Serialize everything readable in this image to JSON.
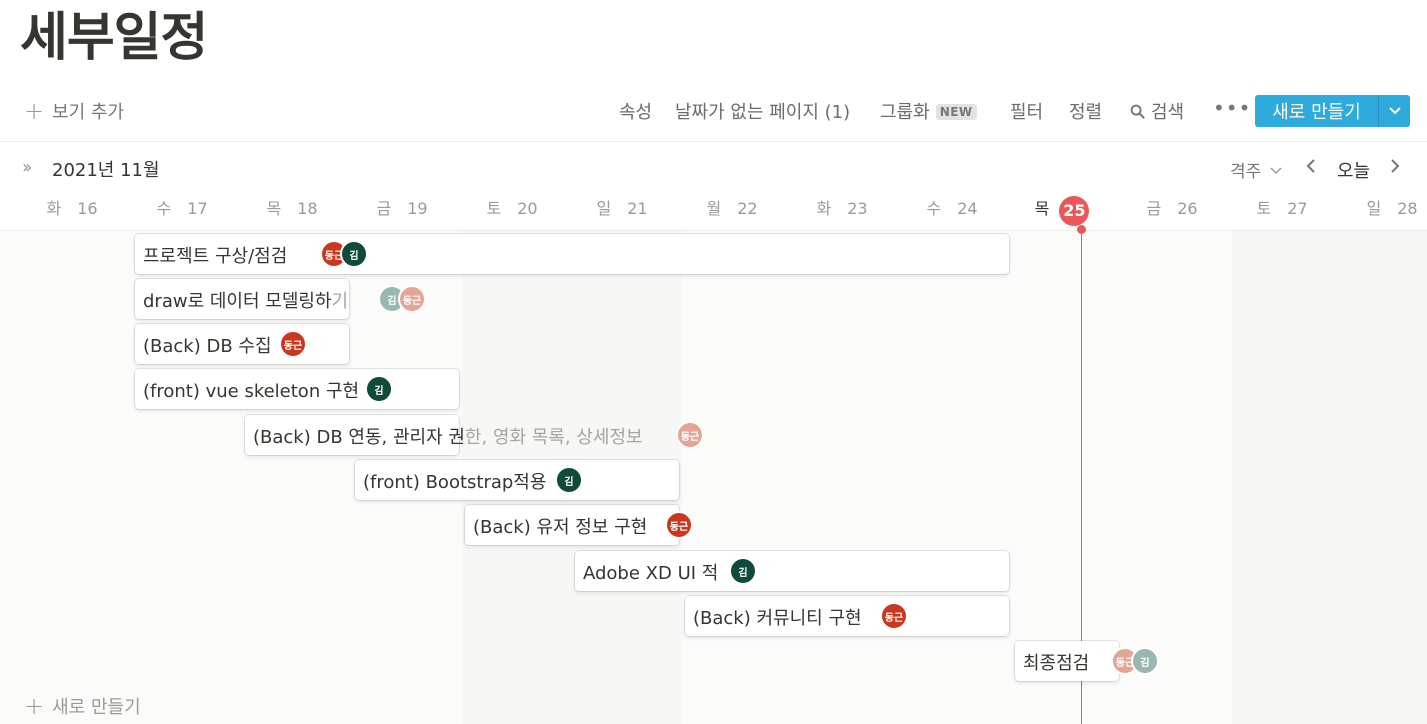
{
  "page": {
    "title": "세부일정"
  },
  "toolbar": {
    "add_view": "보기 추가",
    "properties": "속성",
    "no_date_pages": "날짜가 없는 페이지 (1)",
    "group": "그룹화",
    "group_badge": "NEW",
    "filter": "필터",
    "sort": "정렬",
    "search": "검색",
    "more": "•••",
    "new_button": "새로 만들기"
  },
  "timeline": {
    "month": "2021년 11월",
    "zoom": "격주",
    "today": "오늘",
    "accent": "#eb5757",
    "days": [
      {
        "weekday": "화",
        "date": "16"
      },
      {
        "weekday": "수",
        "date": "17"
      },
      {
        "weekday": "목",
        "date": "18"
      },
      {
        "weekday": "금",
        "date": "19"
      },
      {
        "weekday": "토",
        "date": "20"
      },
      {
        "weekday": "일",
        "date": "21"
      },
      {
        "weekday": "월",
        "date": "22"
      },
      {
        "weekday": "화",
        "date": "23"
      },
      {
        "weekday": "수",
        "date": "24"
      },
      {
        "weekday": "목",
        "date": "25"
      },
      {
        "weekday": "금",
        "date": "26"
      },
      {
        "weekday": "토",
        "date": "27"
      },
      {
        "weekday": "일",
        "date": "28"
      }
    ],
    "tasks": [
      {
        "name": "프로젝트 구상/점검",
        "assignees": [
          "동근",
          "김"
        ]
      },
      {
        "name": "draw로 데이터 모델링하",
        "name_overflow": "기",
        "assignees": [
          "김",
          "동근"
        ]
      },
      {
        "name": "(Back) DB 수집",
        "assignees": [
          "동근"
        ]
      },
      {
        "name": "(front) vue skeleton 구현",
        "assignees": [
          "김"
        ]
      },
      {
        "name": "(Back) DB 연동, 관리자 권",
        "name_overflow": "한, 영화 목록, 상세정보",
        "assignees": [
          "동근"
        ]
      },
      {
        "name": "(front) Bootstrap적용",
        "assignees": [
          "김"
        ]
      },
      {
        "name": "(Back) 유저 정보 구현",
        "assignees": [
          "동근"
        ]
      },
      {
        "name": "Adobe XD UI 적",
        "assignees": [
          "김"
        ]
      },
      {
        "name": "(Back) 커뮤니티 구현",
        "assignees": [
          "동근"
        ]
      },
      {
        "name": "최종점검",
        "assignees": [
          "동근",
          "김"
        ]
      }
    ],
    "new_row": "새로 만들기"
  }
}
